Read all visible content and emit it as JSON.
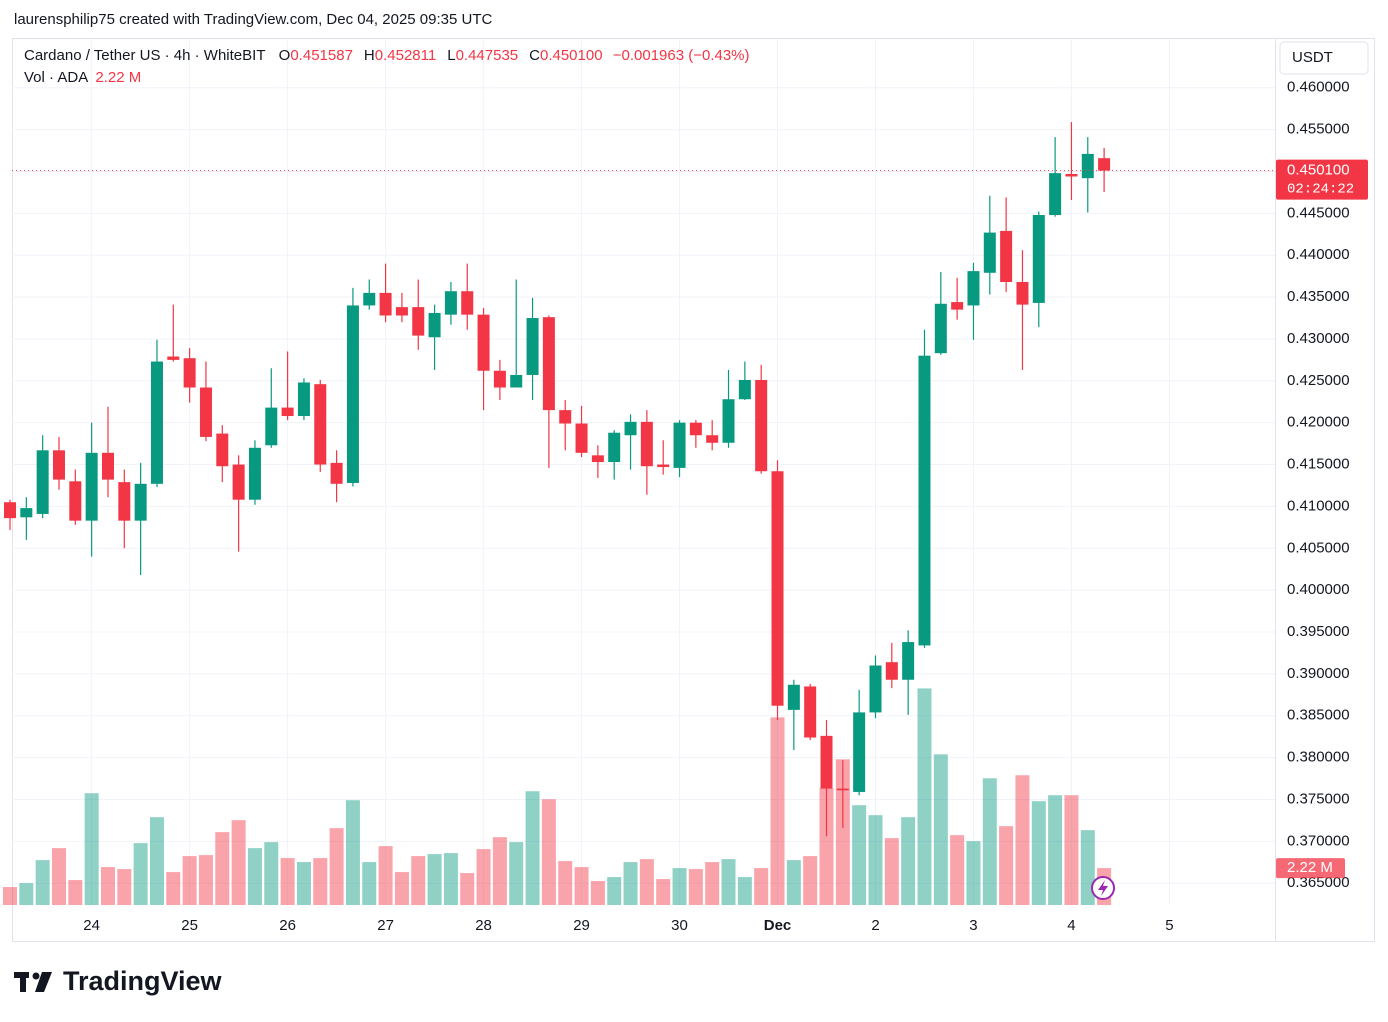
{
  "chart_data": {
    "type": "candlestick",
    "credit": "laurensphilip75 created with TradingView.com, Dec 04, 2025 09:35 UTC",
    "title": "Cardano / Tether US · 4h · WhiteBIT",
    "ohlc_legend": [
      {
        "key": "O",
        "value": "0.451587"
      },
      {
        "key": "H",
        "value": "0.452811"
      },
      {
        "key": "L",
        "value": "0.447535"
      },
      {
        "key": "C",
        "value": "0.450100"
      }
    ],
    "change": "−0.001963 (−0.43%)",
    "volume_title": "Vol · ADA",
    "volume_value_label": "2.22 M",
    "currency": "USDT",
    "last_price_label": "0.450100",
    "countdown": "02:24:22",
    "brand": "TradingView",
    "up_color": "#089981",
    "down_color": "#f23645",
    "grid": true,
    "categories": [
      null,
      null,
      null,
      null,
      null,
      "24",
      null,
      null,
      null,
      null,
      null,
      "25",
      null,
      null,
      null,
      null,
      null,
      "26",
      null,
      null,
      null,
      null,
      null,
      "27",
      null,
      null,
      null,
      null,
      null,
      "28",
      null,
      null,
      null,
      null,
      null,
      "29",
      null,
      null,
      null,
      null,
      null,
      "30",
      null,
      null,
      null,
      null,
      null,
      "Dec",
      null,
      null,
      null,
      null,
      null,
      "2",
      null,
      null,
      null,
      null,
      null,
      "3",
      null,
      null,
      null,
      null,
      null,
      "4",
      null,
      null,
      null,
      null,
      null,
      "5"
    ],
    "open": [
      0.4105,
      0.4087,
      0.4091,
      0.4167,
      0.413,
      0.4083,
      0.4164,
      0.4129,
      0.4083,
      0.4127,
      0.4279,
      0.4277,
      0.4242,
      0.4187,
      0.415,
      0.4108,
      0.4173,
      0.4218,
      0.4208,
      0.4246,
      0.4152,
      0.4128,
      0.434,
      0.4355,
      0.4338,
      0.4338,
      0.4302,
      0.4329,
      0.4357,
      0.4329,
      0.4262,
      0.4242,
      0.4257,
      0.4326,
      0.4215,
      0.4199,
      0.4161,
      0.4153,
      0.4185,
      0.4201,
      0.415,
      0.4146,
      0.42,
      0.4185,
      0.4176,
      0.4228,
      0.4251,
      0.4142,
      0.3857,
      0.3885,
      0.3826,
      0.3763,
      0.3759,
      0.3854,
      0.3914,
      0.3893,
      0.3934,
      0.4283,
      0.4344,
      0.434,
      0.4379,
      0.4429,
      0.4368,
      0.4343,
      0.4448,
      0.4497,
      0.4492,
      0.451587,
      null,
      null,
      null,
      null
    ],
    "high": [
      0.4108,
      0.4111,
      0.4185,
      0.4183,
      0.4144,
      0.42,
      0.4219,
      0.4144,
      0.4152,
      0.4299,
      0.4341,
      0.4289,
      0.4273,
      0.4197,
      0.4161,
      0.4179,
      0.4265,
      0.4285,
      0.4253,
      0.4251,
      0.4167,
      0.4361,
      0.4371,
      0.439,
      0.4355,
      0.4371,
      0.4341,
      0.4368,
      0.439,
      0.4337,
      0.4275,
      0.4371,
      0.4349,
      0.4328,
      0.4227,
      0.422,
      0.4173,
      0.4191,
      0.421,
      0.4215,
      0.4179,
      0.4203,
      0.4203,
      0.4203,
      0.4263,
      0.4273,
      0.4269,
      0.4155,
      0.3893,
      0.3888,
      0.3845,
      0.3797,
      0.3881,
      0.3922,
      0.3937,
      0.3952,
      0.4311,
      0.438,
      0.4373,
      0.4391,
      0.4471,
      0.4469,
      0.4406,
      0.4452,
      0.4541,
      0.4559,
      0.4541,
      0.452811,
      null,
      null,
      null,
      null
    ],
    "low": [
      0.4072,
      0.406,
      0.4086,
      0.412,
      0.4078,
      0.404,
      0.4111,
      0.405,
      0.4018,
      0.4123,
      0.4273,
      0.4224,
      0.4178,
      0.4129,
      0.4046,
      0.4102,
      0.417,
      0.4203,
      0.4203,
      0.4141,
      0.4105,
      0.4124,
      0.4335,
      0.432,
      0.432,
      0.4287,
      0.4263,
      0.4317,
      0.4311,
      0.4215,
      0.4227,
      0.4242,
      0.4227,
      0.4146,
      0.4167,
      0.4159,
      0.4134,
      0.4132,
      0.4144,
      0.4114,
      0.4138,
      0.4135,
      0.417,
      0.4167,
      0.417,
      0.4227,
      0.4139,
      0.3845,
      0.3809,
      0.3821,
      0.3706,
      0.3716,
      0.3755,
      0.3847,
      0.3883,
      0.3851,
      0.3931,
      0.4281,
      0.4323,
      0.4299,
      0.4353,
      0.4356,
      0.4263,
      0.4314,
      0.4446,
      0.4466,
      0.4451,
      0.447535,
      null,
      null,
      null,
      null
    ],
    "close": [
      0.4086,
      0.4098,
      0.4167,
      0.4132,
      0.4083,
      0.4164,
      0.4132,
      0.4083,
      0.4127,
      0.4273,
      0.4275,
      0.4242,
      0.4183,
      0.4148,
      0.4108,
      0.417,
      0.4218,
      0.4208,
      0.4248,
      0.415,
      0.4127,
      0.434,
      0.4355,
      0.4328,
      0.4328,
      0.4304,
      0.4331,
      0.4357,
      0.4329,
      0.4262,
      0.4242,
      0.4257,
      0.4325,
      0.4215,
      0.4199,
      0.4164,
      0.4153,
      0.4188,
      0.4201,
      0.4148,
      0.4147,
      0.42,
      0.4185,
      0.4176,
      0.4228,
      0.4251,
      0.4142,
      0.3862,
      0.3887,
      0.3824,
      0.3763,
      0.3761,
      0.3854,
      0.391,
      0.3893,
      0.3938,
      0.428,
      0.4342,
      0.4335,
      0.4381,
      0.4427,
      0.4368,
      0.4341,
      0.4448,
      0.4498,
      0.4494,
      0.4521,
      0.4501,
      null,
      null,
      null,
      null
    ],
    "volume": [
      1.08,
      1.32,
      2.7,
      3.42,
      1.5,
      6.72,
      2.28,
      2.16,
      3.72,
      5.28,
      1.98,
      2.94,
      3.0,
      4.38,
      5.1,
      3.42,
      3.78,
      2.82,
      2.58,
      2.82,
      4.62,
      6.3,
      2.58,
      3.54,
      1.98,
      2.94,
      3.06,
      3.12,
      1.92,
      3.36,
      4.08,
      3.78,
      6.84,
      6.36,
      2.64,
      2.28,
      1.44,
      1.68,
      2.58,
      2.76,
      1.56,
      2.22,
      2.16,
      2.58,
      2.76,
      1.68,
      2.22,
      11.28,
      2.7,
      2.94,
      7.02,
      8.76,
      6.0,
      5.4,
      4.02,
      5.28,
      13.02,
      9.06,
      4.2,
      3.84,
      7.62,
      4.74,
      7.8,
      6.24,
      6.6,
      6.6,
      4.5,
      2.22,
      null,
      null,
      null,
      null
    ],
    "ylim": [
      0.3624,
      0.4657
    ],
    "yticks": [
      {
        "value": 0.365,
        "label": "0.365000"
      },
      {
        "value": 0.37,
        "label": "0.370000"
      },
      {
        "value": 0.375,
        "label": "0.375000"
      },
      {
        "value": 0.38,
        "label": "0.380000"
      },
      {
        "value": 0.385,
        "label": "0.385000"
      },
      {
        "value": 0.39,
        "label": "0.390000"
      },
      {
        "value": 0.395,
        "label": "0.395000"
      },
      {
        "value": 0.4,
        "label": "0.400000"
      },
      {
        "value": 0.405,
        "label": "0.405000"
      },
      {
        "value": 0.41,
        "label": "0.410000"
      },
      {
        "value": 0.415,
        "label": "0.415000"
      },
      {
        "value": 0.42,
        "label": "0.420000"
      },
      {
        "value": 0.425,
        "label": "0.425000"
      },
      {
        "value": 0.43,
        "label": "0.430000"
      },
      {
        "value": 0.435,
        "label": "0.435000"
      },
      {
        "value": 0.44,
        "label": "0.440000"
      },
      {
        "value": 0.445,
        "label": "0.445000"
      },
      {
        "value": 0.45,
        "label": "0.450000"
      },
      {
        "value": 0.455,
        "label": "0.455000"
      },
      {
        "value": 0.46,
        "label": "0.460000"
      }
    ],
    "y2lim": [
      0,
      52
    ]
  }
}
